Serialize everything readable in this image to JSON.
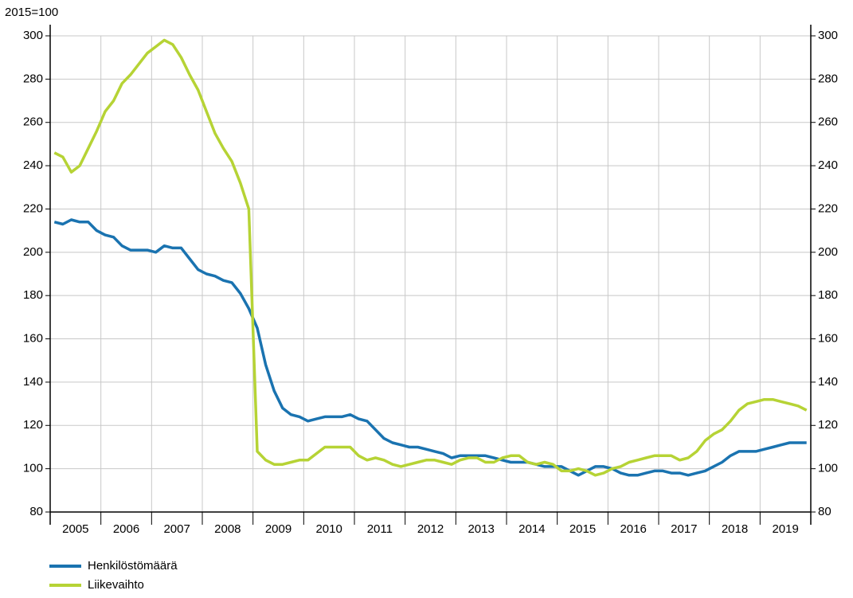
{
  "chart_data": {
    "type": "line",
    "y_label": "2015=100",
    "categories": [
      "2005",
      null,
      null,
      null,
      null,
      null,
      "2006",
      null,
      null,
      null,
      null,
      null,
      "2007",
      null,
      null,
      null,
      null,
      null,
      "2008",
      null,
      null,
      null,
      null,
      null,
      "2009",
      null,
      null,
      null,
      null,
      null,
      "2010",
      null,
      null,
      null,
      null,
      null,
      "2011",
      null,
      null,
      null,
      null,
      null,
      "2012",
      null,
      null,
      null,
      null,
      null,
      "2013",
      null,
      null,
      null,
      null,
      null,
      "2014",
      null,
      null,
      null,
      null,
      null,
      "2015",
      null,
      null,
      null,
      null,
      null,
      "2016",
      null,
      null,
      null,
      null,
      null,
      "2017",
      null,
      null,
      null,
      null,
      null,
      "2018",
      null,
      null,
      null,
      null,
      null,
      "2019",
      null,
      null,
      null,
      null,
      null
    ],
    "series": [
      {
        "name": "Henkilöstömäärä",
        "color": "#1a73b0",
        "values": [
          214,
          213,
          215,
          214,
          214,
          210,
          208,
          207,
          203,
          201,
          201,
          201,
          200,
          203,
          202,
          202,
          197,
          192,
          190,
          189,
          187,
          186,
          181,
          174,
          165,
          148,
          136,
          128,
          125,
          124,
          122,
          123,
          124,
          124,
          124,
          125,
          123,
          122,
          118,
          114,
          112,
          111,
          110,
          110,
          109,
          108,
          107,
          105,
          106,
          106,
          106,
          106,
          105,
          104,
          103,
          103,
          103,
          102,
          101,
          101,
          101,
          99,
          97,
          99,
          101,
          101,
          100,
          98,
          97,
          97,
          98,
          99,
          99,
          98,
          98,
          97,
          98,
          99,
          101,
          103,
          106,
          108,
          108,
          108,
          109,
          110,
          111,
          112,
          112,
          112
        ]
      },
      {
        "name": "Liikevaihto",
        "color": "#b6d335",
        "values": [
          246,
          244,
          237,
          240,
          248,
          256,
          265,
          270,
          278,
          282,
          287,
          292,
          295,
          298,
          296,
          290,
          282,
          275,
          265,
          255,
          248,
          242,
          232,
          220,
          108,
          104,
          102,
          102,
          103,
          104,
          104,
          107,
          110,
          110,
          110,
          110,
          106,
          104,
          105,
          104,
          102,
          101,
          102,
          103,
          104,
          104,
          103,
          102,
          104,
          105,
          105,
          103,
          103,
          105,
          106,
          106,
          103,
          102,
          103,
          102,
          99,
          99,
          100,
          99,
          97,
          98,
          100,
          101,
          103,
          104,
          105,
          106,
          106,
          106,
          104,
          105,
          108,
          113,
          116,
          118,
          122,
          127,
          130,
          131,
          132,
          132,
          131,
          130,
          129,
          127
        ]
      }
    ],
    "ylim": [
      80,
      300
    ],
    "yticks": [
      80,
      100,
      120,
      140,
      160,
      180,
      200,
      220,
      240,
      260,
      280,
      300
    ],
    "y2lim": [
      80,
      300
    ],
    "y2ticks": [
      80,
      100,
      120,
      140,
      160,
      180,
      200,
      220,
      240,
      260,
      280,
      300
    ],
    "grid": true
  }
}
